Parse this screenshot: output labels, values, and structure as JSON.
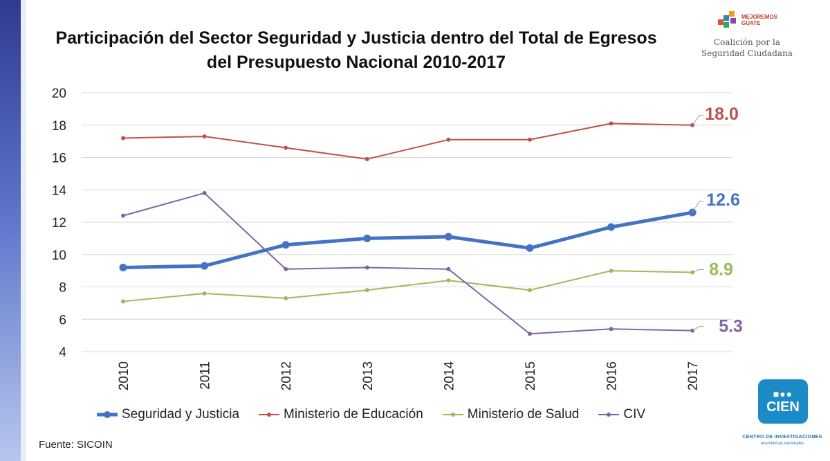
{
  "chart_data": {
    "type": "line",
    "title_line1": "Participación del Sector Seguridad y Justicia dentro del Total de Egresos",
    "title_line2": "del Presupuesto Nacional 2010-2017",
    "categories": [
      "2010",
      "2011",
      "2012",
      "2013",
      "2014",
      "2015",
      "2016",
      "2017"
    ],
    "ylim": [
      4,
      20
    ],
    "yticks": [
      4,
      6,
      8,
      10,
      12,
      14,
      16,
      18,
      20
    ],
    "grid": true,
    "legend_position": "bottom",
    "series": [
      {
        "name": "Seguridad y Justicia",
        "color": "#4472c4",
        "values": [
          9.2,
          9.3,
          10.6,
          11.0,
          11.1,
          10.4,
          11.7,
          12.6
        ],
        "end_label": "12.6",
        "weight": "thick"
      },
      {
        "name": "Ministerio de Educación",
        "color": "#c0504d",
        "values": [
          17.2,
          17.3,
          16.6,
          15.9,
          17.1,
          17.1,
          18.1,
          18.0
        ],
        "end_label": "18.0",
        "weight": "thin"
      },
      {
        "name": "Ministerio de Salud",
        "color": "#9bbb59",
        "values": [
          7.1,
          7.6,
          7.3,
          7.8,
          8.4,
          7.8,
          9.0,
          8.9
        ],
        "end_label": "8.9",
        "weight": "thin"
      },
      {
        "name": "CIV",
        "color": "#8064a2",
        "values": [
          12.4,
          13.8,
          9.1,
          9.2,
          9.1,
          5.1,
          5.4,
          5.3
        ],
        "end_label": "5.3",
        "weight": "thin"
      }
    ]
  },
  "footer": {
    "source": "Fuente: SICOIN"
  },
  "logos": {
    "top_brand_line1": "MEJOREMOS",
    "top_brand_line2": "GUATE",
    "top_tagline_line1": "Coalición por la",
    "top_tagline_line2": "Seguridad Ciudadana",
    "bottom_name": "CIEN",
    "bottom_sub1": "CENTRO DE INVESTIGACIONES",
    "bottom_sub2": "económicas nacionales"
  }
}
